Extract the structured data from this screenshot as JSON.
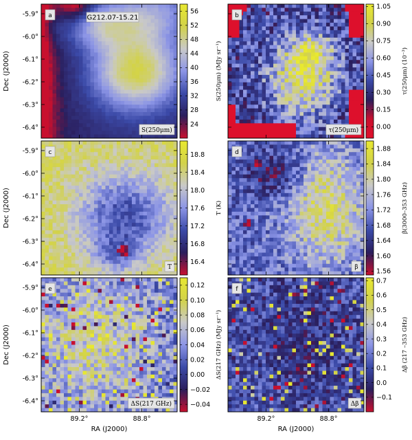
{
  "figure": {
    "title": "G212.07-15.21"
  },
  "chart_data": [
    {
      "type": "heatmap",
      "panel": "a",
      "quantity_label": "S(250μm)",
      "colorbar_label": "S(250μm) (MJy sr⁻¹)",
      "colorbar_ticks": [
        "56",
        "52",
        "48",
        "44",
        "40",
        "36",
        "32",
        "28",
        "24"
      ],
      "colorbar_range": [
        20,
        58
      ],
      "colormap": [
        "#c8102e",
        "#2a1e5c",
        "#3b4aa8",
        "#8c95e6",
        "#c9c9c8",
        "#d2d24a",
        "#e8e830"
      ],
      "y_ticks": [
        "-5.9°",
        "-6.0°",
        "-6.1°",
        "-6.2°",
        "-6.3°",
        "-6.4°"
      ],
      "ylabel": "Dec (J2000)",
      "xlabel": "",
      "x_ticks": []
    },
    {
      "type": "heatmap",
      "panel": "b",
      "quantity_label": "τ(250μm)",
      "colorbar_label": "τ(250μm) (10⁻³)",
      "colorbar_ticks": [
        "1.05",
        "0.90",
        "0.75",
        "0.60",
        "0.45",
        "0.30",
        "0.15",
        "0.00"
      ],
      "colorbar_range": [
        -0.1,
        1.07
      ],
      "colormap": [
        "#e0102c",
        "#c8102e",
        "#2a1e5c",
        "#3b4aa8",
        "#8c95e6",
        "#c9c9c8",
        "#d2d24a",
        "#e8e830"
      ],
      "y_ticks": [],
      "ylabel": "",
      "xlabel": "",
      "x_ticks": []
    },
    {
      "type": "heatmap",
      "panel": "c",
      "quantity_label": "T",
      "colorbar_label": "T (K)",
      "colorbar_ticks": [
        "18.8",
        "18.4",
        "18.0",
        "17.6",
        "17.2",
        "16.8",
        "16.4"
      ],
      "colorbar_range": [
        16.1,
        19.1
      ],
      "colormap": [
        "#c8102e",
        "#2a1e5c",
        "#3b4aa8",
        "#8c95e6",
        "#c9c9c8",
        "#d2d24a",
        "#e8e830"
      ],
      "y_ticks": [
        "-5.9°",
        "-6.0°",
        "-6.1°",
        "-6.2°",
        "-6.3°",
        "-6.4°"
      ],
      "ylabel": "Dec (J2000)",
      "xlabel": "",
      "x_ticks": []
    },
    {
      "type": "heatmap",
      "panel": "d",
      "quantity_label": "β",
      "colorbar_label": "β(3000–353 GHz)",
      "colorbar_ticks": [
        "1.88",
        "1.84",
        "1.80",
        "1.76",
        "1.72",
        "1.68",
        "1.64",
        "1.60",
        "1.56"
      ],
      "colorbar_range": [
        1.55,
        1.9
      ],
      "colormap": [
        "#c8102e",
        "#2a1e5c",
        "#3b4aa8",
        "#8c95e6",
        "#c9c9c8",
        "#d2d24a",
        "#e8e830"
      ],
      "y_ticks": [],
      "ylabel": "",
      "xlabel": "",
      "x_ticks": []
    },
    {
      "type": "heatmap",
      "panel": "e",
      "quantity_label": "ΔS(217 GHz)",
      "colorbar_label": "ΔS(217 GHz) (MJy sr⁻¹)",
      "colorbar_ticks": [
        "0.12",
        "0.10",
        "0.08",
        "0.06",
        "0.04",
        "0.02",
        "0.00",
        "−0.02",
        "−0.04"
      ],
      "colorbar_range": [
        -0.05,
        0.13
      ],
      "colormap": [
        "#c8102e",
        "#2a1e5c",
        "#3b4aa8",
        "#8c95e6",
        "#c9c9c8",
        "#d2d24a",
        "#e8e830"
      ],
      "y_ticks": [
        "-5.9°",
        "-6.0°",
        "-6.1°",
        "-6.2°",
        "-6.3°",
        "-6.4°"
      ],
      "ylabel": "Dec (J2000)",
      "xlabel": "RA (J2000)",
      "x_ticks": [
        "89.2°",
        "88.8°"
      ]
    },
    {
      "type": "heatmap",
      "panel": "f",
      "quantity_label": "Δβ",
      "colorbar_label": "Δβ (217 –353 GHz)",
      "colorbar_ticks": [
        "0.7",
        "0.6",
        "0.5",
        "0.4",
        "0.3",
        "0.2",
        "0.1",
        "0.0",
        "−0.1"
      ],
      "colorbar_range": [
        -0.2,
        0.72
      ],
      "colormap": [
        "#c8102e",
        "#2a1e5c",
        "#3b4aa8",
        "#8c95e6",
        "#c9c9c8",
        "#d2d24a",
        "#e8e830"
      ],
      "y_ticks": [],
      "ylabel": "",
      "xlabel": "RA (J2000)",
      "x_ticks": [
        "89.2°",
        "88.8°"
      ]
    }
  ]
}
